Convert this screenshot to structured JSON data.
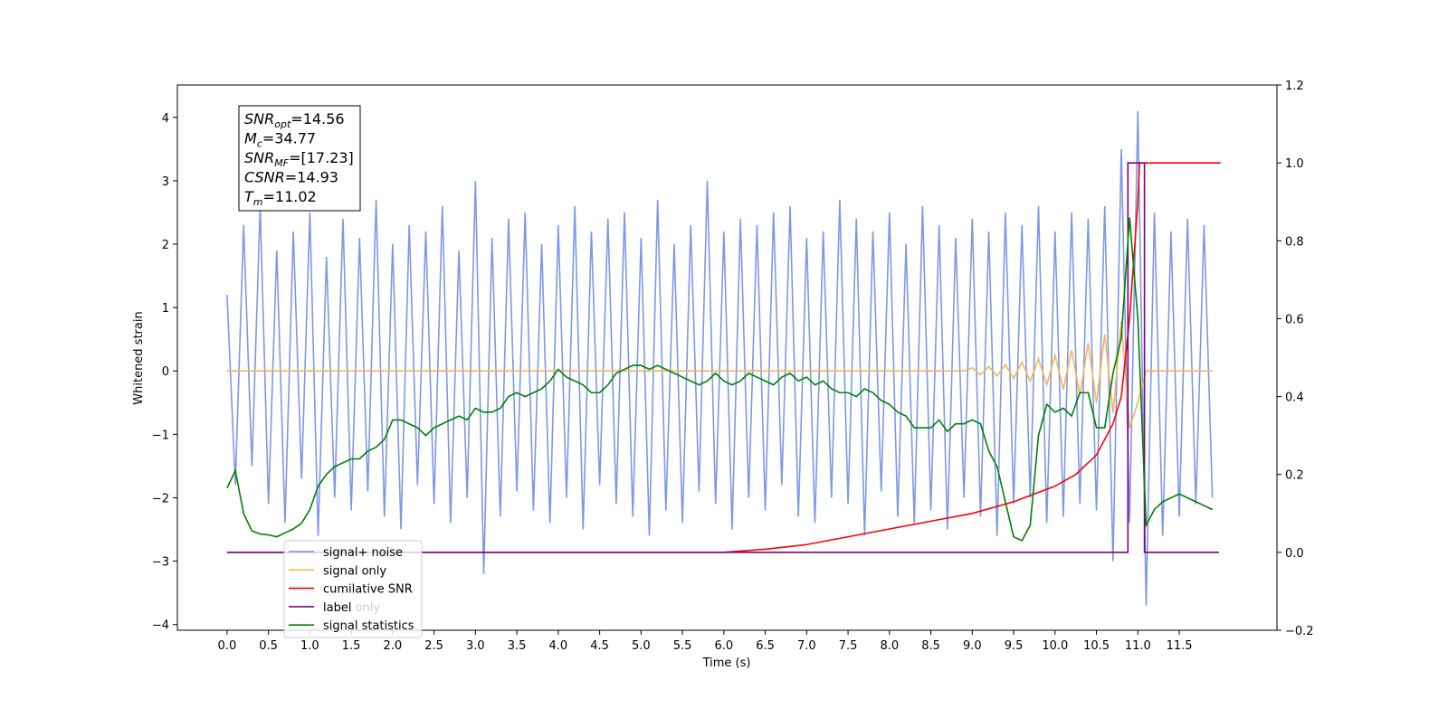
{
  "chart_data": {
    "type": "line",
    "xlabel": "Time (s)",
    "ylabel": "Whitened strain",
    "xlim": [
      -0.6,
      12.68
    ],
    "ylim": [
      -4.09,
      4.51
    ],
    "y2lim": [
      -0.2,
      1.2
    ],
    "xticks": [
      {
        "value": 0,
        "label": "0.0"
      },
      {
        "value": 0.5,
        "label": "0.5"
      },
      {
        "value": 1,
        "label": "1.0"
      },
      {
        "value": 1.5,
        "label": "1.5"
      },
      {
        "value": 2,
        "label": "2.0"
      },
      {
        "value": 2.5,
        "label": "2.5"
      },
      {
        "value": 3,
        "label": "3.0"
      },
      {
        "value": 3.5,
        "label": "3.5"
      },
      {
        "value": 4,
        "label": "4.0"
      },
      {
        "value": 4.5,
        "label": "4.5"
      },
      {
        "value": 5,
        "label": "5.0"
      },
      {
        "value": 5.5,
        "label": "5.5"
      },
      {
        "value": 6,
        "label": "6.0"
      },
      {
        "value": 6.5,
        "label": "6.5"
      },
      {
        "value": 7,
        "label": "7.0"
      },
      {
        "value": 7.5,
        "label": "7.5"
      },
      {
        "value": 8,
        "label": "8.0"
      },
      {
        "value": 8.5,
        "label": "8.5"
      },
      {
        "value": 9,
        "label": "9.0"
      },
      {
        "value": 9.5,
        "label": "9.5"
      },
      {
        "value": 10,
        "label": "10.0"
      },
      {
        "value": 10.5,
        "label": "10.5"
      },
      {
        "value": 11,
        "label": "11.0"
      },
      {
        "value": 11.5,
        "label": "11.5"
      }
    ],
    "yticks": [
      {
        "value": -4,
        "label": "−4"
      },
      {
        "value": -3,
        "label": "−3"
      },
      {
        "value": -2,
        "label": "−2"
      },
      {
        "value": -1,
        "label": "−1"
      },
      0,
      1,
      2,
      3,
      4
    ],
    "y2ticks": [
      {
        "value": -0.2,
        "label": "−0.2"
      },
      {
        "value": 0,
        "label": "0.0"
      },
      0.2,
      0.4,
      0.6,
      0.8,
      {
        "value": 1,
        "label": "1.0"
      },
      1.2
    ],
    "legend_loc": "lower left",
    "legend_overlap_text": "label only",
    "annotation": [
      {
        "text": "SNR",
        "sub": "opt",
        "rest": "=14.56"
      },
      {
        "text": "M",
        "sub": "c",
        "rest": "=34.77"
      },
      {
        "text": "SNR",
        "sub": "MF",
        "rest": "=[17.23]"
      },
      {
        "text": "CSNR",
        "sub": "",
        "rest": "=14.93"
      },
      {
        "text": "T",
        "sub": "m",
        "rest": "=11.02"
      }
    ],
    "x": [
      0,
      0.1,
      0.2,
      0.3,
      0.4,
      0.5,
      0.6,
      0.7,
      0.8,
      0.9,
      1,
      1.1,
      1.2,
      1.3,
      1.4,
      1.5,
      1.6,
      1.7,
      1.8,
      1.9,
      2,
      2.1,
      2.2,
      2.3,
      2.4,
      2.5,
      2.6,
      2.7,
      2.8,
      2.9,
      3,
      3.1,
      3.2,
      3.3,
      3.4,
      3.5,
      3.6,
      3.7,
      3.8,
      3.9,
      4,
      4.1,
      4.2,
      4.3,
      4.4,
      4.5,
      4.6,
      4.7,
      4.8,
      4.9,
      5,
      5.1,
      5.2,
      5.3,
      5.4,
      5.5,
      5.6,
      5.7,
      5.8,
      5.9,
      6,
      6.1,
      6.2,
      6.3,
      6.4,
      6.5,
      6.6,
      6.7,
      6.8,
      6.9,
      7,
      7.1,
      7.2,
      7.3,
      7.4,
      7.5,
      7.6,
      7.7,
      7.8,
      7.9,
      8,
      8.1,
      8.2,
      8.3,
      8.4,
      8.5,
      8.6,
      8.7,
      8.8,
      8.9,
      9,
      9.1,
      9.2,
      9.3,
      9.4,
      9.5,
      9.6,
      9.7,
      9.8,
      9.9,
      10,
      10.1,
      10.2,
      10.3,
      10.4,
      10.5,
      10.6,
      10.7,
      10.8,
      10.9,
      11,
      11.1,
      11.2,
      11.3,
      11.4,
      11.5,
      11.6,
      11.7,
      11.8,
      11.9
    ],
    "series": [
      {
        "name": "signal+ noise",
        "color": "#7593e6",
        "values": [
          1.2,
          -1.8,
          2.3,
          -1.5,
          2.6,
          -2.1,
          1.9,
          -2.4,
          2.2,
          -1.7,
          2.5,
          -2.6,
          1.8,
          -2.0,
          2.4,
          -2.2,
          2.1,
          -1.9,
          2.7,
          -2.3,
          2.0,
          -2.5,
          2.3,
          -1.8,
          2.2,
          -2.1,
          2.6,
          -2.4,
          1.9,
          -2.0,
          3.0,
          -3.2,
          2.1,
          -2.3,
          2.4,
          -1.9,
          2.5,
          -2.2,
          2.0,
          -2.4,
          2.3,
          -2.0,
          2.6,
          -2.5,
          2.2,
          -1.8,
          2.4,
          -2.1,
          2.5,
          -2.3,
          2.1,
          -2.6,
          2.7,
          -2.2,
          2.0,
          -2.4,
          2.3,
          -1.9,
          3.0,
          -2.1,
          2.2,
          -2.5,
          2.4,
          -2.0,
          2.3,
          -2.2,
          2.5,
          -1.8,
          2.6,
          -2.3,
          2.1,
          -2.4,
          2.2,
          -2.0,
          2.7,
          -2.1,
          2.4,
          -2.6,
          2.2,
          -1.9,
          2.5,
          -2.3,
          2.0,
          -2.4,
          2.6,
          -2.2,
          2.3,
          -2.5,
          2.1,
          -2.0,
          2.4,
          -2.3,
          2.2,
          -2.6,
          2.5,
          -2.1,
          2.3,
          -2.0,
          2.6,
          -2.4,
          2.2,
          -2.3,
          2.5,
          -2.1,
          2.4,
          -2.2,
          2.6,
          -3.0,
          3.5,
          -2.4,
          4.1,
          -3.7,
          2.5,
          -2.6,
          2.2,
          -2.3,
          2.4,
          -2.1,
          2.3,
          -2.0
        ]
      },
      {
        "name": "signal only",
        "color": "#f5b55c",
        "values": [
          0,
          0,
          0,
          0,
          0,
          0,
          0,
          0,
          0,
          0,
          0,
          0,
          0,
          0,
          0,
          0,
          0,
          0,
          0,
          0,
          0,
          0,
          0,
          0,
          0,
          0,
          0,
          0,
          0,
          0,
          0,
          0,
          0,
          0,
          0,
          0,
          0,
          0,
          0,
          0,
          0,
          0,
          0,
          0,
          0,
          0,
          0,
          0,
          0,
          0,
          0,
          0,
          0,
          0,
          0,
          0,
          0,
          0,
          0,
          0,
          0,
          0,
          0,
          0,
          0,
          0,
          0,
          0,
          0,
          0,
          0,
          0,
          0,
          0,
          0,
          0,
          0,
          0,
          0,
          0,
          0,
          0,
          0,
          0,
          0,
          0,
          0,
          0,
          0,
          0,
          0.05,
          -0.06,
          0.07,
          -0.08,
          0.1,
          -0.12,
          0.14,
          -0.16,
          0.19,
          -0.22,
          0.25,
          -0.29,
          0.33,
          -0.38,
          0.44,
          -0.5,
          0.58,
          -0.66,
          0.78,
          -0.9,
          -0.5,
          0,
          0,
          0,
          0,
          0,
          0,
          0,
          0,
          0
        ]
      },
      {
        "name": "cumilative SNR",
        "color": "#ff0000",
        "axis": "y2",
        "x": [
          0,
          6,
          6.5,
          7,
          7.5,
          8,
          8.5,
          9,
          9.5,
          10,
          10.25,
          10.5,
          10.7,
          10.8,
          10.9,
          10.95,
          11,
          11.02,
          12
        ],
        "values": [
          0,
          0,
          0.008,
          0.02,
          0.04,
          0.06,
          0.08,
          0.1,
          0.13,
          0.17,
          0.2,
          0.25,
          0.33,
          0.4,
          0.6,
          0.75,
          0.9,
          1,
          1
        ]
      },
      {
        "name": "label",
        "color": "#800080",
        "axis": "y2",
        "x": [
          0,
          10.88,
          10.88,
          11.08,
          11.08,
          11.98
        ],
        "values": [
          0,
          0,
          1,
          1,
          0,
          0
        ]
      },
      {
        "name": "signal statistics",
        "color": "#008000",
        "axis": "y2",
        "values": [
          0.165,
          0.21,
          0.1,
          0.055,
          0.047,
          0.045,
          0.04,
          0.05,
          0.06,
          0.075,
          0.11,
          0.17,
          0.2,
          0.22,
          0.23,
          0.24,
          0.24,
          0.26,
          0.27,
          0.29,
          0.34,
          0.34,
          0.33,
          0.32,
          0.3,
          0.32,
          0.33,
          0.34,
          0.35,
          0.34,
          0.37,
          0.36,
          0.36,
          0.37,
          0.4,
          0.41,
          0.4,
          0.41,
          0.42,
          0.44,
          0.47,
          0.45,
          0.44,
          0.43,
          0.41,
          0.41,
          0.43,
          0.46,
          0.47,
          0.48,
          0.48,
          0.47,
          0.48,
          0.47,
          0.46,
          0.45,
          0.44,
          0.43,
          0.44,
          0.46,
          0.44,
          0.43,
          0.44,
          0.46,
          0.45,
          0.44,
          0.43,
          0.45,
          0.46,
          0.44,
          0.45,
          0.43,
          0.44,
          0.42,
          0.41,
          0.41,
          0.4,
          0.42,
          0.41,
          0.39,
          0.38,
          0.36,
          0.35,
          0.32,
          0.32,
          0.32,
          0.34,
          0.31,
          0.33,
          0.33,
          0.34,
          0.33,
          0.26,
          0.22,
          0.13,
          0.04,
          0.03,
          0.07,
          0.3,
          0.38,
          0.36,
          0.37,
          0.35,
          0.41,
          0.41,
          0.32,
          0.32,
          0.46,
          0.55,
          0.86,
          0.6,
          0.07,
          0.11,
          0.13,
          0.14,
          0.15,
          0.14,
          0.13,
          0.12,
          0.11
        ]
      }
    ]
  }
}
